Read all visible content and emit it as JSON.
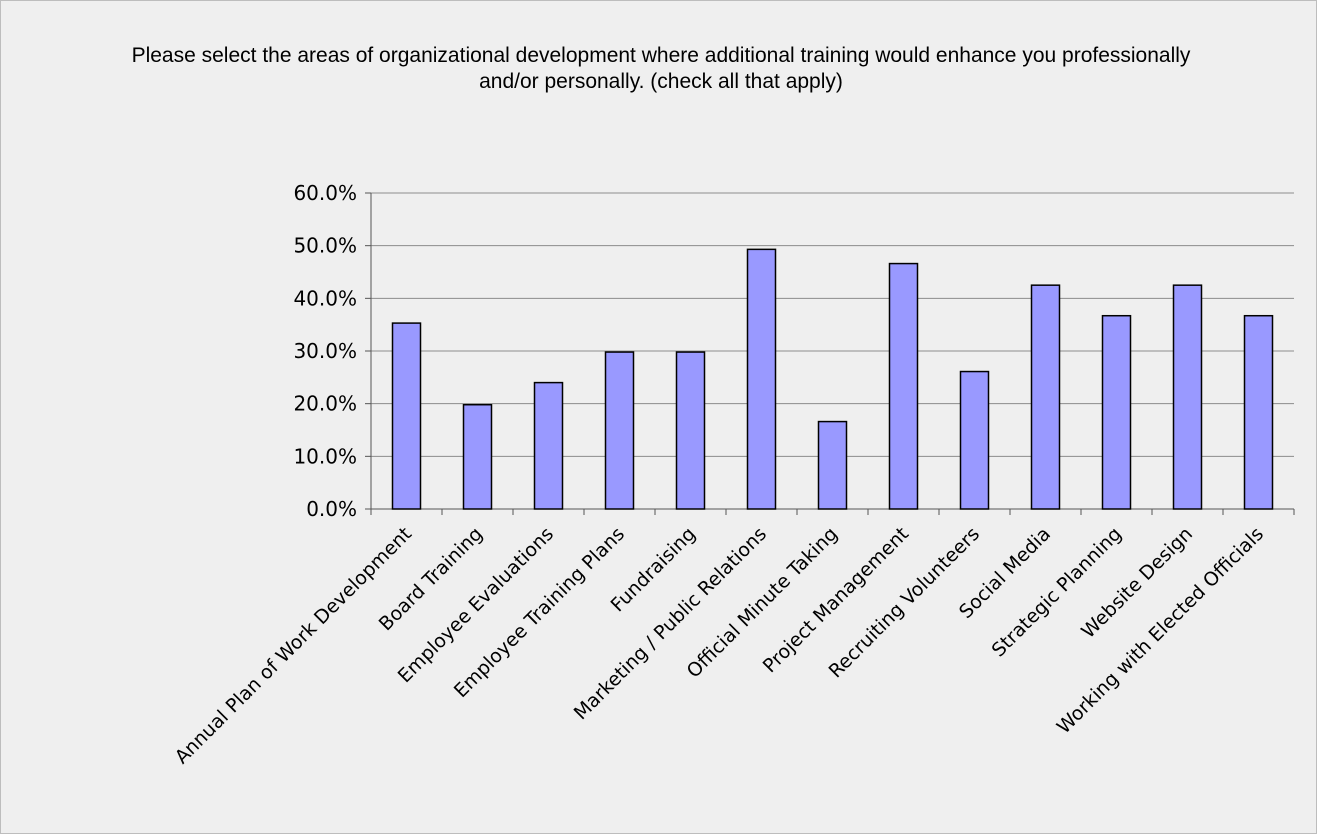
{
  "chart_data": {
    "type": "bar",
    "title": "Please select the areas of organizational development where additional training would enhance you professionally and/or personally. (check all that apply)",
    "xlabel": "",
    "ylabel": "",
    "ylim": [
      0,
      60
    ],
    "y_ticks": [
      "0.0%",
      "10.0%",
      "20.0%",
      "30.0%",
      "40.0%",
      "50.0%",
      "60.0%"
    ],
    "y_tick_values": [
      0,
      10,
      20,
      30,
      40,
      50,
      60
    ],
    "grid": true,
    "legend": "none",
    "bar_color": "#9999ff",
    "bar_border_color": "#000000",
    "categories": [
      "Annual Plan of Work Development",
      "Board Training",
      "Employee Evaluations",
      "Employee Training Plans",
      "Fundraising",
      "Marketing / Public Relations",
      "Official Minute Taking",
      "Project Management",
      "Recruiting Volunteers",
      "Social Media",
      "Strategic Planning",
      "Website Design",
      "Working with Elected Officials"
    ],
    "values": [
      35.3,
      19.8,
      24.0,
      29.8,
      29.8,
      49.3,
      16.6,
      46.6,
      26.1,
      42.5,
      36.7,
      42.5,
      36.7
    ]
  }
}
